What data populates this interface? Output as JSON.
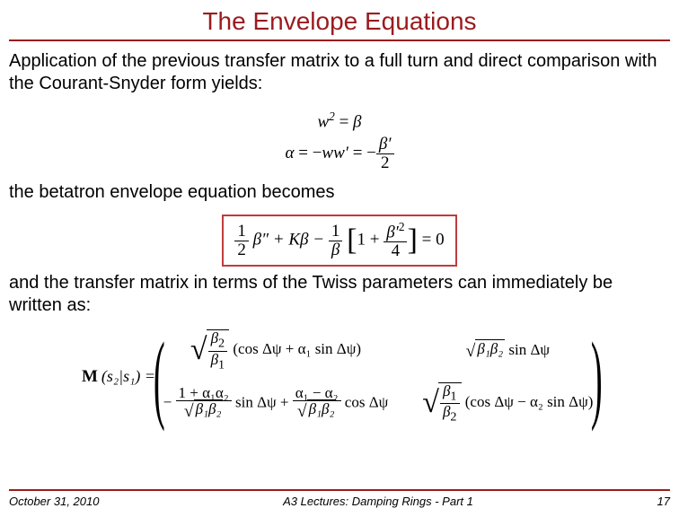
{
  "title": "The Envelope Equations",
  "para1": "Application of the previous transfer matrix to a full turn and direct comparison with the Courant-Snyder form yields:",
  "para2": "the betatron envelope equation becomes",
  "para3": "and the transfer matrix in terms of the Twiss parameters can immediately be written as:",
  "eq1_lhs": "w",
  "eq1_sup": "2",
  "eq1_eq": " = ",
  "eq1_rhs": "β",
  "eq2_lhs": "α",
  "eq2_eq": " = −",
  "eq2_mid": "ww′",
  "eq2_eq2": " = −",
  "eq2_num": "β′",
  "eq2_den": "2",
  "boxed_half_num": "1",
  "boxed_half_den": "2",
  "boxed_bpp": "β″ + Kβ − ",
  "boxed_1beta_num": "1",
  "boxed_1beta_den": "β",
  "boxed_one": "1 + ",
  "boxed_bp2_num": "β′",
  "boxed_bp2_sup": "2",
  "boxed_bp2_den": "4",
  "boxed_tail": " = 0",
  "matrix_M": "M",
  "matrix_args": "(s₂|s₁) = ",
  "m11_sqrt_num": "β",
  "m11_sqrt_sub1": "2",
  "m11_sqrt_den": "β",
  "m11_sqrt_sub2": "1",
  "m11_rest": "(cos Δψ + α₁ sin Δψ)",
  "m12_sqrt": "β₁β₂",
  "m12_rest": " sin Δψ",
  "m21_pre": "− ",
  "m21_num": "1 + α₁α₂",
  "m21_den_sqrt": "β₁β₂",
  "m21_mid": " sin Δψ + ",
  "m21_num2": "α₁ − α₂",
  "m21_den2_sqrt": "β₁β₂",
  "m21_end": " cos Δψ",
  "m22_sqrt_num": "β",
  "m22_sqrt_sub1": "1",
  "m22_sqrt_den": "β",
  "m22_sqrt_sub2": "2",
  "m22_rest": "(cos Δψ − α₂ sin Δψ)",
  "footer_date": "October 31, 2010",
  "footer_center": "A3 Lectures: Damping Rings - Part 1",
  "footer_page": "17",
  "colors": {
    "accent": "#9a1b1e",
    "box_border": "#c13b3b",
    "text": "#000000",
    "background": "#ffffff"
  }
}
